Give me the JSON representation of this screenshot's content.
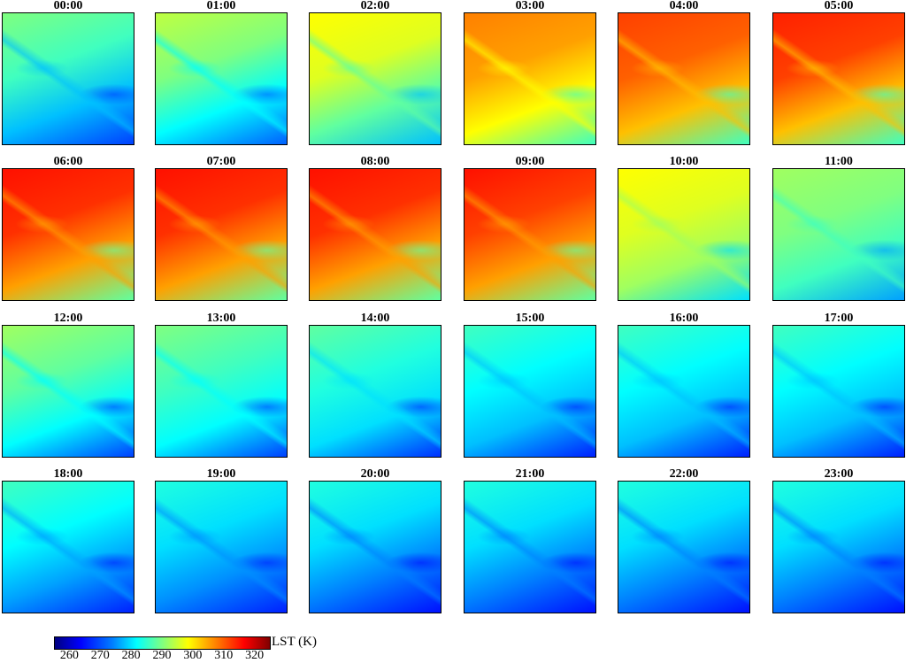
{
  "chart_data": {
    "type": "heatmap",
    "title": "",
    "layout": {
      "rows": 4,
      "cols": 6
    },
    "panels": [
      {
        "label": "00:00",
        "dominant_colors": [
          "#7fff7f",
          "#40ffbf",
          "#00c0ff",
          "#0040ff"
        ],
        "approx_range_K": [
          258,
          292
        ]
      },
      {
        "label": "01:00",
        "dominant_colors": [
          "#bfff40",
          "#7fff7f",
          "#00ffff",
          "#0060ff"
        ],
        "approx_range_K": [
          262,
          296
        ]
      },
      {
        "label": "02:00",
        "dominant_colors": [
          "#ffff00",
          "#dfff20",
          "#60ffa0",
          "#00c0ff"
        ],
        "approx_range_K": [
          270,
          302
        ]
      },
      {
        "label": "03:00",
        "dominant_colors": [
          "#ff8000",
          "#ffa000",
          "#ffff00",
          "#40ffbf"
        ],
        "approx_range_K": [
          282,
          312
        ]
      },
      {
        "label": "04:00",
        "dominant_colors": [
          "#ff4000",
          "#ff6000",
          "#ffc000",
          "#40ffbf"
        ],
        "approx_range_K": [
          284,
          316
        ]
      },
      {
        "label": "05:00",
        "dominant_colors": [
          "#ff2000",
          "#ff4000",
          "#ffc000",
          "#40ffbf"
        ],
        "approx_range_K": [
          284,
          318
        ]
      },
      {
        "label": "06:00",
        "dominant_colors": [
          "#ff1000",
          "#ff3000",
          "#ffa000",
          "#60ffa0"
        ],
        "approx_range_K": [
          286,
          320
        ]
      },
      {
        "label": "07:00",
        "dominant_colors": [
          "#ff1000",
          "#ff3000",
          "#ffa000",
          "#60ffa0"
        ],
        "approx_range_K": [
          286,
          320
        ]
      },
      {
        "label": "08:00",
        "dominant_colors": [
          "#ff1000",
          "#ff3000",
          "#ffa000",
          "#60ffa0"
        ],
        "approx_range_K": [
          286,
          320
        ]
      },
      {
        "label": "09:00",
        "dominant_colors": [
          "#ff1000",
          "#ff4000",
          "#ffa000",
          "#60ffa0"
        ],
        "approx_range_K": [
          286,
          318
        ]
      },
      {
        "label": "10:00",
        "dominant_colors": [
          "#ffff00",
          "#dfff20",
          "#a0ff60",
          "#00e0ff"
        ],
        "approx_range_K": [
          276,
          302
        ]
      },
      {
        "label": "11:00",
        "dominant_colors": [
          "#a0ff60",
          "#80ff80",
          "#40ffbf",
          "#00a0ff"
        ],
        "approx_range_K": [
          270,
          294
        ]
      },
      {
        "label": "12:00",
        "dominant_colors": [
          "#a0ff60",
          "#60ffa0",
          "#00ffff",
          "#0040ff"
        ],
        "approx_range_K": [
          264,
          294
        ]
      },
      {
        "label": "13:00",
        "dominant_colors": [
          "#80ff80",
          "#40ffbf",
          "#00ffff",
          "#0040ff"
        ],
        "approx_range_K": [
          264,
          292
        ]
      },
      {
        "label": "14:00",
        "dominant_colors": [
          "#60ffa0",
          "#20ffdf",
          "#00e0ff",
          "#0030ff"
        ],
        "approx_range_K": [
          262,
          290
        ]
      },
      {
        "label": "15:00",
        "dominant_colors": [
          "#40ffbf",
          "#00ffff",
          "#00c0ff",
          "#0020ff"
        ],
        "approx_range_K": [
          260,
          288
        ]
      },
      {
        "label": "16:00",
        "dominant_colors": [
          "#40ffbf",
          "#00ffff",
          "#00c0ff",
          "#0020ff"
        ],
        "approx_range_K": [
          260,
          288
        ]
      },
      {
        "label": "17:00",
        "dominant_colors": [
          "#40ffbf",
          "#00ffff",
          "#00c0ff",
          "#0020ff"
        ],
        "approx_range_K": [
          260,
          288
        ]
      },
      {
        "label": "18:00",
        "dominant_colors": [
          "#40ffbf",
          "#00ffff",
          "#00a0ff",
          "#0020ff"
        ],
        "approx_range_K": [
          260,
          288
        ]
      },
      {
        "label": "19:00",
        "dominant_colors": [
          "#20ffdf",
          "#00e0ff",
          "#0090ff",
          "#0020ff"
        ],
        "approx_range_K": [
          260,
          286
        ]
      },
      {
        "label": "20:00",
        "dominant_colors": [
          "#20ffdf",
          "#00e0ff",
          "#0080ff",
          "#0010ff"
        ],
        "approx_range_K": [
          258,
          286
        ]
      },
      {
        "label": "21:00",
        "dominant_colors": [
          "#20ffdf",
          "#00e0ff",
          "#0080ff",
          "#0010ff"
        ],
        "approx_range_K": [
          258,
          286
        ]
      },
      {
        "label": "22:00",
        "dominant_colors": [
          "#20ffdf",
          "#00e0ff",
          "#0080ff",
          "#0010ff"
        ],
        "approx_range_K": [
          258,
          286
        ]
      },
      {
        "label": "23:00",
        "dominant_colors": [
          "#20ffdf",
          "#00e0ff",
          "#0080ff",
          "#0010ff"
        ],
        "approx_range_K": [
          258,
          286
        ]
      }
    ],
    "colorbar": {
      "label": "LST (K)",
      "colormap": "jet",
      "range": [
        255,
        325
      ],
      "ticks": [
        260,
        270,
        280,
        290,
        300,
        310,
        320
      ],
      "orientation": "horizontal",
      "position": "bottom-left"
    },
    "xlabel": "",
    "ylabel": "",
    "grid": false
  },
  "colorbar_label": "LST (K)",
  "colorbar_ticks": [
    "260",
    "270",
    "280",
    "290",
    "300",
    "310",
    "320"
  ]
}
